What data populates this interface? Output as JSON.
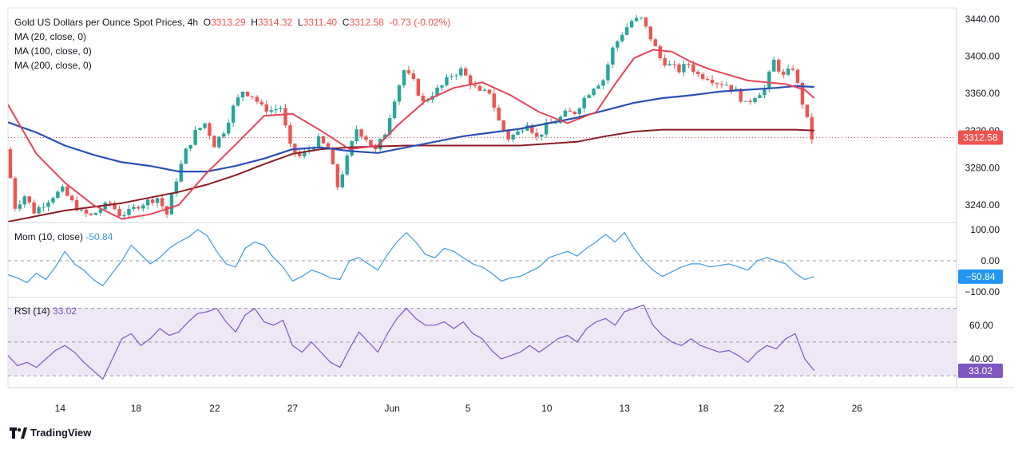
{
  "header": {
    "symbol": "Gold US Dollars per Ounce Spot Prices, 4h",
    "o_label": "O",
    "o_value": "3313.29",
    "h_label": "H",
    "h_value": "3314.32",
    "l_label": "L",
    "l_value": "3311.40",
    "c_label": "C",
    "c_value": "3312.58",
    "change": "-0.73 (-0.02%)"
  },
  "indicators": {
    "ma20": "MA (20, close, 0)",
    "ma100": "MA (100, close, 0)",
    "ma200": "MA (200, close, 0)",
    "mom_label": "Mom (10, close)",
    "mom_value": "-50.84",
    "rsi_label": "RSI (14)",
    "rsi_value": "33.02"
  },
  "price_badge": "3312.58",
  "mom_badge": "−50.84",
  "rsi_badge": "33.02",
  "watermark": "TradingView",
  "colors": {
    "up": "#26a69a",
    "down": "#ef5350",
    "ma20": "#e84357",
    "ma100": "#2a4fb5",
    "ma200": "#8b1c24",
    "mom": "#3d9ae0",
    "rsi": "#7e57c2",
    "rsi_band": "#ede7f6"
  },
  "chart_data": {
    "type": "candlestick",
    "x_range": [
      0,
      100
    ],
    "price_axis": {
      "ticks": [
        "3440.00",
        "3400.00",
        "3360.00",
        "3320.00",
        "3280.00",
        "3240.00"
      ],
      "range": [
        3222,
        3452
      ]
    },
    "mom_axis": {
      "ticks": [
        "100.00",
        "0.00",
        "−100.00"
      ],
      "range": [
        -115,
        120
      ]
    },
    "rsi_axis": {
      "ticks": [
        "60.00",
        "40.00"
      ],
      "range": [
        23,
        76
      ],
      "bands": [
        30,
        50,
        70
      ]
    },
    "x_labels": [
      {
        "x": 5.5,
        "label": "14"
      },
      {
        "x": 13.5,
        "label": "18"
      },
      {
        "x": 21.8,
        "label": "22"
      },
      {
        "x": 30.0,
        "label": "27"
      },
      {
        "x": 40.5,
        "label": "Jun"
      },
      {
        "x": 48.5,
        "label": "5"
      },
      {
        "x": 56.8,
        "label": "10"
      },
      {
        "x": 65.0,
        "label": "13"
      },
      {
        "x": 73.3,
        "label": "18"
      },
      {
        "x": 81.3,
        "label": "22"
      },
      {
        "x": 89.5,
        "label": "26"
      }
    ],
    "price_anchors": [
      [
        0,
        3300
      ],
      [
        1,
        3238
      ],
      [
        2,
        3250
      ],
      [
        3,
        3233
      ],
      [
        5,
        3250
      ],
      [
        6,
        3256
      ],
      [
        7,
        3243
      ],
      [
        8,
        3232
      ],
      [
        9,
        3228
      ],
      [
        10,
        3236
      ],
      [
        11,
        3242
      ],
      [
        12,
        3230
      ],
      [
        13,
        3232
      ],
      [
        14,
        3240
      ],
      [
        16,
        3248
      ],
      [
        17,
        3230
      ],
      [
        18,
        3268
      ],
      [
        19,
        3298
      ],
      [
        20,
        3318
      ],
      [
        21,
        3328
      ],
      [
        22,
        3305
      ],
      [
        23,
        3320
      ],
      [
        24,
        3345
      ],
      [
        25,
        3363
      ],
      [
        26,
        3358
      ],
      [
        27,
        3345
      ],
      [
        28,
        3342
      ],
      [
        29,
        3345
      ],
      [
        30,
        3302
      ],
      [
        31,
        3292
      ],
      [
        32,
        3300
      ],
      [
        33,
        3310
      ],
      [
        34,
        3300
      ],
      [
        35,
        3260
      ],
      [
        36,
        3290
      ],
      [
        37,
        3322
      ],
      [
        38,
        3312
      ],
      [
        39,
        3298
      ],
      [
        40,
        3318
      ],
      [
        41,
        3355
      ],
      [
        42,
        3385
      ],
      [
        43,
        3372
      ],
      [
        44,
        3350
      ],
      [
        45,
        3360
      ],
      [
        46,
        3368
      ],
      [
        47,
        3380
      ],
      [
        48,
        3385
      ],
      [
        49,
        3372
      ],
      [
        50,
        3360
      ],
      [
        51,
        3362
      ],
      [
        52,
        3330
      ],
      [
        53,
        3312
      ],
      [
        54,
        3318
      ],
      [
        55,
        3330
      ],
      [
        56,
        3312
      ],
      [
        57,
        3325
      ],
      [
        58,
        3330
      ],
      [
        59,
        3338
      ],
      [
        60,
        3340
      ],
      [
        61,
        3355
      ],
      [
        62,
        3368
      ],
      [
        63,
        3375
      ],
      [
        64,
        3408
      ],
      [
        65,
        3425
      ],
      [
        66,
        3438
      ],
      [
        67,
        3440
      ],
      [
        68,
        3420
      ],
      [
        69,
        3398
      ],
      [
        70,
        3390
      ],
      [
        71,
        3385
      ],
      [
        72,
        3392
      ],
      [
        73,
        3380
      ],
      [
        74,
        3378
      ],
      [
        75,
        3372
      ],
      [
        76,
        3370
      ],
      [
        77,
        3362
      ],
      [
        78,
        3348
      ],
      [
        79,
        3358
      ],
      [
        80,
        3365
      ],
      [
        81,
        3395
      ],
      [
        82,
        3378
      ],
      [
        83,
        3388
      ],
      [
        84,
        3350
      ],
      [
        85,
        3312
      ]
    ],
    "ma20": [
      [
        0,
        3348
      ],
      [
        3,
        3295
      ],
      [
        6,
        3264
      ],
      [
        9,
        3240
      ],
      [
        12,
        3225
      ],
      [
        15,
        3230
      ],
      [
        18,
        3240
      ],
      [
        21,
        3275
      ],
      [
        24,
        3305
      ],
      [
        27,
        3336
      ],
      [
        30,
        3338
      ],
      [
        33,
        3320
      ],
      [
        36,
        3300
      ],
      [
        39,
        3304
      ],
      [
        41,
        3325
      ],
      [
        44,
        3352
      ],
      [
        47,
        3366
      ],
      [
        50,
        3372
      ],
      [
        53,
        3358
      ],
      [
        56,
        3340
      ],
      [
        59,
        3328
      ],
      [
        62,
        3340
      ],
      [
        64,
        3370
      ],
      [
        66,
        3398
      ],
      [
        68,
        3407
      ],
      [
        70,
        3405
      ],
      [
        72,
        3394
      ],
      [
        74,
        3386
      ],
      [
        76,
        3380
      ],
      [
        78,
        3374
      ],
      [
        80,
        3372
      ],
      [
        82,
        3370
      ],
      [
        84,
        3364
      ],
      [
        85,
        3355
      ]
    ],
    "ma100": [
      [
        0,
        3329
      ],
      [
        3,
        3318
      ],
      [
        6,
        3304
      ],
      [
        9,
        3294
      ],
      [
        12,
        3286
      ],
      [
        15,
        3282
      ],
      [
        18,
        3276
      ],
      [
        21,
        3276
      ],
      [
        24,
        3282
      ],
      [
        27,
        3290
      ],
      [
        30,
        3300
      ],
      [
        33,
        3302
      ],
      [
        36,
        3298
      ],
      [
        39,
        3296
      ],
      [
        42,
        3302
      ],
      [
        45,
        3308
      ],
      [
        48,
        3314
      ],
      [
        51,
        3318
      ],
      [
        54,
        3322
      ],
      [
        57,
        3328
      ],
      [
        60,
        3334
      ],
      [
        63,
        3342
      ],
      [
        66,
        3350
      ],
      [
        69,
        3355
      ],
      [
        72,
        3358
      ],
      [
        75,
        3362
      ],
      [
        78,
        3364
      ],
      [
        81,
        3366
      ],
      [
        83,
        3368
      ],
      [
        85,
        3367
      ]
    ],
    "ma200": [
      [
        0,
        3222
      ],
      [
        3,
        3228
      ],
      [
        6,
        3234
      ],
      [
        9,
        3238
      ],
      [
        12,
        3242
      ],
      [
        15,
        3248
      ],
      [
        18,
        3254
      ],
      [
        21,
        3262
      ],
      [
        24,
        3272
      ],
      [
        27,
        3284
      ],
      [
        30,
        3295
      ],
      [
        33,
        3300
      ],
      [
        36,
        3302
      ],
      [
        39,
        3303
      ],
      [
        42,
        3304
      ],
      [
        45,
        3304
      ],
      [
        48,
        3304
      ],
      [
        51,
        3304
      ],
      [
        54,
        3304
      ],
      [
        57,
        3306
      ],
      [
        60,
        3308
      ],
      [
        63,
        3314
      ],
      [
        66,
        3319
      ],
      [
        69,
        3321
      ],
      [
        72,
        3321
      ],
      [
        75,
        3321
      ],
      [
        78,
        3321
      ],
      [
        81,
        3321
      ],
      [
        83,
        3321
      ],
      [
        85,
        3320
      ]
    ],
    "mom": [
      [
        0,
        -45
      ],
      [
        1,
        -55
      ],
      [
        2,
        -70
      ],
      [
        3,
        -40
      ],
      [
        4,
        -60
      ],
      [
        5,
        -20
      ],
      [
        6,
        30
      ],
      [
        7,
        -10
      ],
      [
        8,
        -30
      ],
      [
        9,
        -60
      ],
      [
        10,
        -80
      ],
      [
        11,
        -40
      ],
      [
        12,
        0
      ],
      [
        13,
        50
      ],
      [
        14,
        20
      ],
      [
        15,
        -10
      ],
      [
        16,
        10
      ],
      [
        17,
        40
      ],
      [
        18,
        60
      ],
      [
        19,
        75
      ],
      [
        20,
        100
      ],
      [
        21,
        80
      ],
      [
        22,
        30
      ],
      [
        23,
        -10
      ],
      [
        24,
        -20
      ],
      [
        25,
        40
      ],
      [
        26,
        60
      ],
      [
        27,
        50
      ],
      [
        28,
        10
      ],
      [
        29,
        -20
      ],
      [
        30,
        -65
      ],
      [
        31,
        -50
      ],
      [
        32,
        -30
      ],
      [
        33,
        -40
      ],
      [
        34,
        -55
      ],
      [
        35,
        -60
      ],
      [
        36,
        0
      ],
      [
        37,
        10
      ],
      [
        38,
        -10
      ],
      [
        39,
        -30
      ],
      [
        40,
        20
      ],
      [
        41,
        60
      ],
      [
        42,
        90
      ],
      [
        43,
        60
      ],
      [
        44,
        20
      ],
      [
        45,
        10
      ],
      [
        46,
        40
      ],
      [
        47,
        30
      ],
      [
        48,
        10
      ],
      [
        49,
        -10
      ],
      [
        50,
        -20
      ],
      [
        51,
        -40
      ],
      [
        52,
        -65
      ],
      [
        53,
        -55
      ],
      [
        54,
        -50
      ],
      [
        55,
        -35
      ],
      [
        56,
        -20
      ],
      [
        57,
        10
      ],
      [
        58,
        20
      ],
      [
        59,
        30
      ],
      [
        60,
        15
      ],
      [
        61,
        40
      ],
      [
        62,
        60
      ],
      [
        63,
        85
      ],
      [
        64,
        60
      ],
      [
        65,
        90
      ],
      [
        66,
        40
      ],
      [
        67,
        0
      ],
      [
        68,
        -30
      ],
      [
        69,
        -50
      ],
      [
        70,
        -35
      ],
      [
        71,
        -20
      ],
      [
        72,
        -10
      ],
      [
        73,
        -10
      ],
      [
        74,
        -20
      ],
      [
        75,
        -15
      ],
      [
        76,
        -10
      ],
      [
        77,
        -20
      ],
      [
        78,
        -30
      ],
      [
        79,
        0
      ],
      [
        80,
        10
      ],
      [
        81,
        0
      ],
      [
        82,
        -10
      ],
      [
        83,
        -40
      ],
      [
        84,
        -60
      ],
      [
        85,
        -50.84
      ]
    ],
    "rsi": [
      [
        0,
        42
      ],
      [
        1,
        36
      ],
      [
        2,
        38
      ],
      [
        3,
        35
      ],
      [
        4,
        40
      ],
      [
        5,
        45
      ],
      [
        6,
        48
      ],
      [
        7,
        44
      ],
      [
        8,
        38
      ],
      [
        9,
        33
      ],
      [
        10,
        28
      ],
      [
        11,
        40
      ],
      [
        12,
        52
      ],
      [
        13,
        55
      ],
      [
        14,
        48
      ],
      [
        15,
        52
      ],
      [
        16,
        58
      ],
      [
        17,
        54
      ],
      [
        18,
        56
      ],
      [
        19,
        62
      ],
      [
        20,
        67
      ],
      [
        21,
        68
      ],
      [
        22,
        70
      ],
      [
        23,
        62
      ],
      [
        24,
        56
      ],
      [
        25,
        66
      ],
      [
        26,
        70
      ],
      [
        27,
        62
      ],
      [
        28,
        60
      ],
      [
        29,
        63
      ],
      [
        30,
        48
      ],
      [
        31,
        44
      ],
      [
        32,
        50
      ],
      [
        33,
        44
      ],
      [
        34,
        38
      ],
      [
        35,
        35
      ],
      [
        36,
        46
      ],
      [
        37,
        56
      ],
      [
        38,
        50
      ],
      [
        39,
        44
      ],
      [
        40,
        55
      ],
      [
        41,
        64
      ],
      [
        42,
        70
      ],
      [
        43,
        64
      ],
      [
        44,
        60
      ],
      [
        45,
        60
      ],
      [
        46,
        62
      ],
      [
        47,
        58
      ],
      [
        48,
        62
      ],
      [
        49,
        55
      ],
      [
        50,
        52
      ],
      [
        51,
        45
      ],
      [
        52,
        40
      ],
      [
        53,
        42
      ],
      [
        54,
        44
      ],
      [
        55,
        48
      ],
      [
        56,
        44
      ],
      [
        57,
        48
      ],
      [
        58,
        52
      ],
      [
        59,
        54
      ],
      [
        60,
        50
      ],
      [
        61,
        58
      ],
      [
        62,
        62
      ],
      [
        63,
        64
      ],
      [
        64,
        60
      ],
      [
        65,
        68
      ],
      [
        66,
        70
      ],
      [
        67,
        72
      ],
      [
        68,
        60
      ],
      [
        69,
        54
      ],
      [
        70,
        50
      ],
      [
        71,
        48
      ],
      [
        72,
        52
      ],
      [
        73,
        48
      ],
      [
        74,
        46
      ],
      [
        75,
        44
      ],
      [
        76,
        45
      ],
      [
        77,
        42
      ],
      [
        78,
        38
      ],
      [
        79,
        44
      ],
      [
        80,
        48
      ],
      [
        81,
        46
      ],
      [
        82,
        52
      ],
      [
        83,
        55
      ],
      [
        84,
        40
      ],
      [
        85,
        33.02
      ]
    ]
  }
}
